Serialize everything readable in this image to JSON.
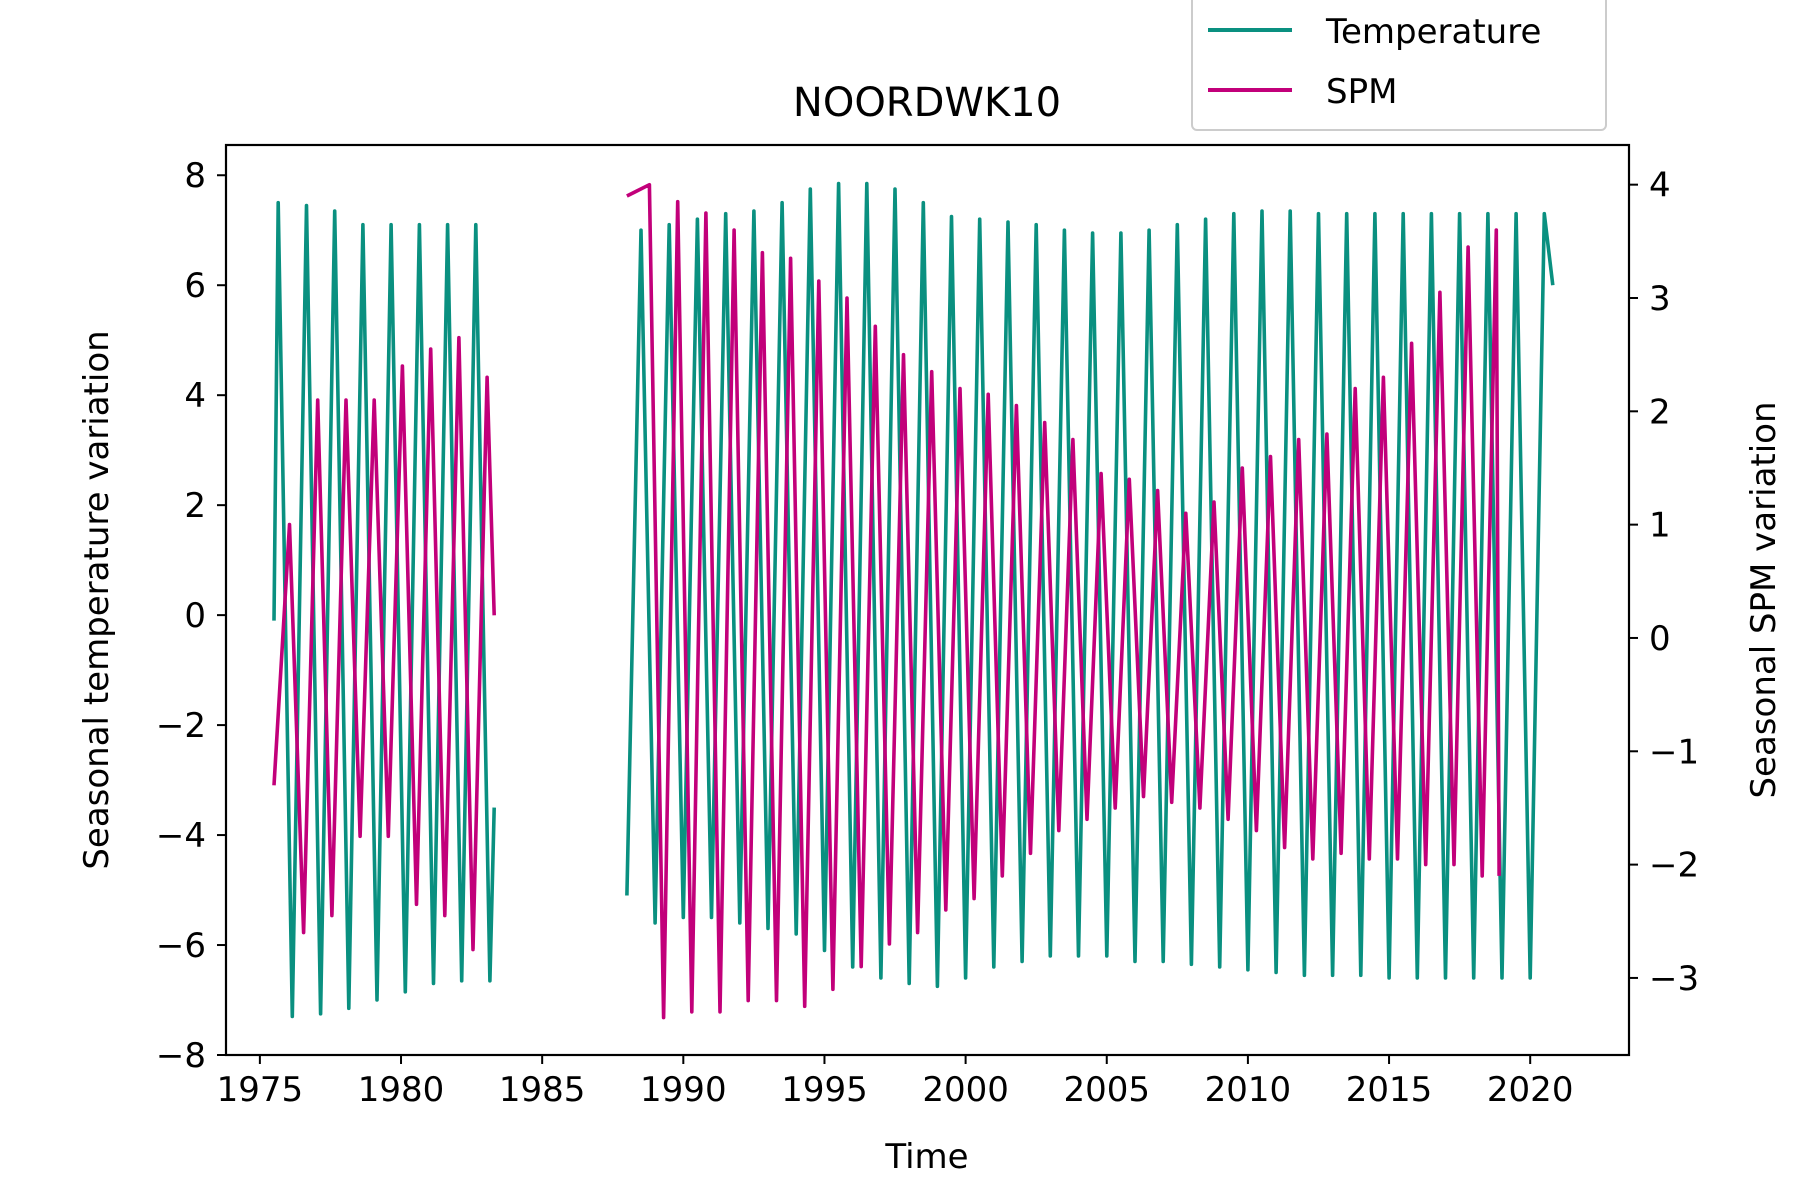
{
  "chart_data": {
    "type": "line",
    "title": "NOORDWK10",
    "xlabel": "Time",
    "ylabel_left": "Seasonal temperature variation",
    "ylabel_right": "Seasonal SPM variation",
    "xlim": [
      1973.8,
      2023.5
    ],
    "ylim_left": [
      -8,
      8.55
    ],
    "ylim_right": [
      -3.68,
      4.35
    ],
    "x_ticks": [
      1975,
      1980,
      1985,
      1990,
      1995,
      2000,
      2005,
      2010,
      2015,
      2020
    ],
    "y_ticks_left": [
      -8,
      -6,
      -4,
      -2,
      0,
      2,
      4,
      6,
      8
    ],
    "y_ticks_right": [
      -3,
      -2,
      -1,
      0,
      1,
      2,
      3,
      4
    ],
    "grid": false,
    "legend": {
      "placement": "top-right (above axes)",
      "entries": [
        "Temperature",
        "SPM"
      ]
    },
    "series": [
      {
        "name": "Temperature",
        "axis": "left",
        "color": "#0a9080",
        "segments": [
          {
            "start": 1975.5,
            "end": 1983.3,
            "period": 1.0,
            "peak_x": 1975.65,
            "first_y": -0.1,
            "last_y": -3.5,
            "peaks": [
              7.5,
              7.45,
              7.35,
              7.1,
              7.1,
              7.1,
              7.1,
              7.1
            ],
            "troughs": [
              -7.3,
              -7.25,
              -7.15,
              -7.0,
              -6.85,
              -6.7,
              -6.65,
              -6.65
            ]
          },
          {
            "start": 1988.0,
            "end": 2020.8,
            "period": 1.0,
            "peak_x": 1988.5,
            "first_y": -5.1,
            "last_y": 6.0,
            "peaks": [
              7.0,
              7.1,
              7.2,
              7.3,
              7.35,
              7.5,
              7.75,
              7.85,
              7.85,
              7.75,
              7.5,
              7.25,
              7.2,
              7.15,
              7.1,
              7.0,
              6.95,
              6.95,
              7.0,
              7.1,
              7.2,
              7.3,
              7.35,
              7.35,
              7.3,
              7.3,
              7.3,
              7.3,
              7.3,
              7.3,
              7.3,
              7.3,
              7.3
            ],
            "troughs": [
              -5.6,
              -5.5,
              -5.5,
              -5.6,
              -5.7,
              -5.8,
              -6.1,
              -6.4,
              -6.6,
              -6.7,
              -6.75,
              -6.6,
              -6.4,
              -6.3,
              -6.2,
              -6.2,
              -6.2,
              -6.3,
              -6.3,
              -6.35,
              -6.4,
              -6.45,
              -6.5,
              -6.55,
              -6.55,
              -6.55,
              -6.6,
              -6.6,
              -6.6,
              -6.6,
              -6.6,
              -6.6,
              -6.5
            ]
          }
        ]
      },
      {
        "name": "SPM",
        "axis": "right",
        "color": "#c2007a",
        "segments": [
          {
            "start": 1975.5,
            "end": 1983.3,
            "period": 1.0,
            "peak_x": 1976.05,
            "first_y": -1.3,
            "last_y": 0.2,
            "peaks": [
              1.0,
              2.1,
              2.1,
              2.1,
              2.4,
              2.55,
              2.65,
              2.3
            ],
            "troughs": [
              -2.6,
              -2.45,
              -1.75,
              -1.75,
              -2.35,
              -2.45,
              -2.75,
              -2.65
            ]
          },
          {
            "start": 1988.0,
            "end": 2018.9,
            "period": 1.0,
            "peak_x": 1988.8,
            "first_y": 3.9,
            "last_y": -2.1,
            "peaks": [
              4.0,
              3.85,
              3.75,
              3.6,
              3.4,
              3.35,
              3.15,
              3.0,
              2.75,
              2.5,
              2.35,
              2.2,
              2.15,
              2.05,
              1.9,
              1.75,
              1.45,
              1.4,
              1.3,
              1.1,
              1.2,
              1.5,
              1.6,
              1.75,
              1.8,
              2.2,
              2.3,
              2.6,
              3.05,
              3.45,
              3.6
            ],
            "troughs": [
              -3.35,
              -3.3,
              -3.3,
              -3.2,
              -3.2,
              -3.25,
              -3.1,
              -2.9,
              -2.7,
              -2.6,
              -2.4,
              -2.3,
              -2.1,
              -1.9,
              -1.7,
              -1.6,
              -1.5,
              -1.4,
              -1.45,
              -1.5,
              -1.6,
              -1.7,
              -1.85,
              -1.95,
              -1.9,
              -1.95,
              -1.95,
              -2.0,
              -2.0,
              -2.1,
              -2.15
            ]
          }
        ]
      }
    ]
  }
}
